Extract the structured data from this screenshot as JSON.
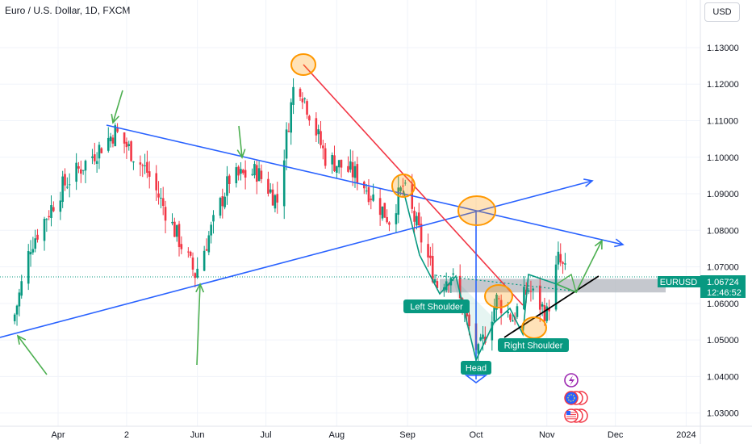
{
  "header": {
    "title": "Euro / U.S. Dollar, 1D, FXCM",
    "currency_label": "USD"
  },
  "price_badge": {
    "symbol": "EURUSD",
    "price": "1.06724",
    "countdown": "12:46:52"
  },
  "colors": {
    "up": "#089981",
    "down": "#f23645",
    "trend_blue": "#2962ff",
    "diag_red": "#f23645",
    "arrow_green": "#4caf50",
    "zone_gray": "#b2b5be",
    "highlight_orange": "#ff9800",
    "label_teal": "#089981",
    "neckline_black": "#000000"
  },
  "icons": [
    "lightning-icon",
    "globe-flag-icon",
    "us-flag-icon"
  ],
  "annotations": {
    "left_shoulder": "Left Shoulder",
    "head": "Head",
    "right_shoulder": "Right Shoulder"
  },
  "chart_data": {
    "type": "candlestick",
    "title": "Euro / U.S. Dollar, 1D, FXCM",
    "ylim": [
      1.0255,
      1.1375
    ],
    "y_ticks": [
      "1.03000",
      "1.04000",
      "1.05000",
      "1.06000",
      "1.07000",
      "1.08000",
      "1.09000",
      "1.10000",
      "1.11000",
      "1.12000",
      "1.13000"
    ],
    "x_ticks": [
      "Apr",
      "2",
      "Jun",
      "Jul",
      "Aug",
      "Sep",
      "Oct",
      "Nov",
      "Dec",
      "2024"
    ],
    "last_price": 1.06724,
    "close_path": [
      {
        "date": "2023-03-13",
        "close": 1.057
      },
      {
        "date": "2023-03-20",
        "close": 1.076
      },
      {
        "date": "2023-04-03",
        "close": 1.092
      },
      {
        "date": "2023-04-26",
        "close": 1.107
      },
      {
        "date": "2023-05-10",
        "close": 1.096
      },
      {
        "date": "2023-05-31",
        "close": 1.068
      },
      {
        "date": "2023-06-15",
        "close": 1.094
      },
      {
        "date": "2023-06-27",
        "close": 1.096
      },
      {
        "date": "2023-07-06",
        "close": 1.088
      },
      {
        "date": "2023-07-14",
        "close": 1.123
      },
      {
        "date": "2023-07-27",
        "close": 1.1
      },
      {
        "date": "2023-08-10",
        "close": 1.095
      },
      {
        "date": "2023-08-24",
        "close": 1.083
      },
      {
        "date": "2023-08-30",
        "close": 1.092
      },
      {
        "date": "2023-09-14",
        "close": 1.065
      },
      {
        "date": "2023-09-20",
        "close": 1.068
      },
      {
        "date": "2023-10-02",
        "close": 1.046
      },
      {
        "date": "2023-10-10",
        "close": 1.061
      },
      {
        "date": "2023-10-17",
        "close": 1.056
      },
      {
        "date": "2023-10-24",
        "close": 1.064
      },
      {
        "date": "2023-11-01",
        "close": 1.057
      },
      {
        "date": "2023-11-06",
        "close": 1.072
      },
      {
        "date": "2023-11-10",
        "close": 1.0672
      }
    ]
  }
}
